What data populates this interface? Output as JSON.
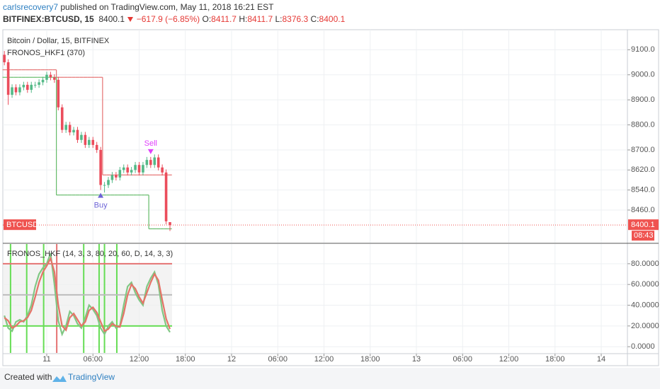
{
  "header": {
    "author": "carlsrecovery7",
    "published": "published on TradingView.com, May 11, 2018 16:21 EST",
    "symbol": "BITFINEX:BTCUSD, 15",
    "last": "8400.1",
    "change": "−617.9 (−6.85%)",
    "ohlc": [
      {
        "label": "O:",
        "value": "8411.7"
      },
      {
        "label": "H:",
        "value": "8411.7"
      },
      {
        "label": "L:",
        "value": "8376.3"
      },
      {
        "label": "C:",
        "value": "8400.1"
      }
    ]
  },
  "chart_data": [
    {
      "type": "candlestick",
      "title": "Bitcoin / Dollar, 15, BITFINEX",
      "indicator_label": "FRONOS_HKF1 (370)",
      "symbol_label": "BTCUSD",
      "countdown": "08:43",
      "up_color": "#53b987",
      "down_color": "#eb4d5c",
      "x": [
        -5.5,
        -5,
        -4.5,
        -4,
        -3.5,
        -3,
        -2.5,
        -2,
        -1.5,
        -1,
        -0.5,
        0,
        0.5,
        1,
        1.5,
        2,
        2.5,
        3,
        3.5,
        4,
        4.5,
        5,
        5.5,
        6,
        6.5,
        7,
        7.5,
        8,
        8.5,
        9,
        9.5,
        10,
        10.5,
        11,
        11.5,
        12,
        12.5,
        13,
        13.5,
        14,
        14.5,
        15,
        15.5,
        16
      ],
      "open": [
        9080,
        9050,
        8920,
        8950,
        8930,
        8950,
        8960,
        8940,
        8960,
        8960,
        8970,
        8980,
        9000,
        8990,
        8980,
        8870,
        8780,
        8800,
        8770,
        8780,
        8740,
        8760,
        8720,
        8740,
        8720,
        8700,
        8560,
        8560,
        8580,
        8600,
        8590,
        8620,
        8630,
        8610,
        8620,
        8640,
        8610,
        8640,
        8660,
        8640,
        8670,
        8630,
        8610,
        8411.7
      ],
      "high": [
        9095,
        9062,
        8962,
        8962,
        8962,
        8972,
        8972,
        8972,
        8972,
        8982,
        8992,
        9012,
        9012,
        9002,
        8992,
        8882,
        8812,
        8812,
        8792,
        8792,
        8772,
        8772,
        8752,
        8752,
        8732,
        8712,
        8572,
        8592,
        8612,
        8612,
        8632,
        8642,
        8642,
        8632,
        8652,
        8652,
        8652,
        8672,
        8672,
        8682,
        8682,
        8642,
        8622,
        8411.7
      ],
      "low": [
        9038,
        8880,
        8908,
        8918,
        8918,
        8938,
        8928,
        8928,
        8948,
        8948,
        8958,
        8968,
        8978,
        8968,
        8858,
        8768,
        8768,
        8758,
        8758,
        8728,
        8728,
        8708,
        8708,
        8708,
        8688,
        8540,
        8530,
        8548,
        8568,
        8578,
        8578,
        8608,
        8598,
        8598,
        8608,
        8598,
        8598,
        8628,
        8628,
        8628,
        8618,
        8598,
        8403,
        8376.3
      ],
      "close": [
        9050,
        8920,
        8950,
        8930,
        8950,
        8960,
        8940,
        8960,
        8960,
        8970,
        8980,
        9000,
        8990,
        8980,
        8870,
        8780,
        8800,
        8770,
        8780,
        8740,
        8760,
        8720,
        8740,
        8720,
        8700,
        8560,
        8560,
        8580,
        8600,
        8590,
        8620,
        8630,
        8610,
        8620,
        8640,
        8610,
        8640,
        8660,
        8640,
        8670,
        8630,
        8610,
        8415,
        8400.1
      ],
      "channel": {
        "upper": {
          "color": "#e57373",
          "values": [
            9020,
            9020,
            9020,
            9020,
            9020,
            9020,
            9020,
            9020,
            9020,
            9020,
            9020,
            9020,
            9020,
            9020,
            8990,
            8990,
            8990,
            8990,
            8990,
            8990,
            8990,
            8990,
            8990,
            8990,
            8990,
            8990,
            8600,
            8600,
            8600,
            8600,
            8600,
            8600,
            8600,
            8600,
            8600,
            8600,
            8600,
            8600,
            8600,
            8600,
            8600,
            8600,
            8600,
            8600
          ]
        },
        "lower": {
          "color": "#66bb6a",
          "values": [
            8990,
            8990,
            8990,
            8990,
            8990,
            8990,
            8990,
            8990,
            8990,
            8990,
            8990,
            8990,
            8990,
            8990,
            8520,
            8520,
            8520,
            8520,
            8520,
            8520,
            8520,
            8520,
            8520,
            8520,
            8520,
            8520,
            8520,
            8520,
            8520,
            8520,
            8520,
            8520,
            8520,
            8520,
            8520,
            8520,
            8520,
            8520,
            8385,
            8385,
            8385,
            8385,
            8385,
            8385
          ]
        }
      },
      "annotations": [
        {
          "text": "Buy",
          "x": 7.0,
          "color": "#6c63d6"
        },
        {
          "text": "Sell",
          "x": 13.5,
          "color": "#e040fb"
        }
      ],
      "price_line_color": "#ef5350",
      "xlim": [
        -5.7,
        75.4
      ],
      "xticks": [
        {
          "value": 0,
          "label": "11"
        },
        {
          "value": 6,
          "label": "06:00"
        },
        {
          "value": 12,
          "label": "12:00"
        },
        {
          "value": 18,
          "label": "18:00"
        },
        {
          "value": 24,
          "label": "12"
        },
        {
          "value": 30,
          "label": "06:00"
        },
        {
          "value": 36,
          "label": "12:00"
        },
        {
          "value": 42,
          "label": "18:00"
        },
        {
          "value": 48,
          "label": "13"
        },
        {
          "value": 54,
          "label": "06:00"
        },
        {
          "value": 60,
          "label": "12:00"
        },
        {
          "value": 66,
          "label": "18:00"
        },
        {
          "value": 72,
          "label": "14"
        }
      ],
      "ylim": [
        8330,
        9180
      ],
      "yticks": [
        {
          "value": 8460,
          "label": "8460.0"
        },
        {
          "value": 8540,
          "label": "8540.0"
        },
        {
          "value": 8620,
          "label": "8620.0"
        },
        {
          "value": 8700,
          "label": "8700.0"
        },
        {
          "value": 8800,
          "label": "8800.0"
        },
        {
          "value": 8900,
          "label": "8900.0"
        },
        {
          "value": 9000,
          "label": "9000.0"
        },
        {
          "value": 9100,
          "label": "9100.0"
        }
      ],
      "grid": true
    },
    {
      "type": "line",
      "title": "FRONOS_HKF (14, 3, 3, 80, 20, 60, D, 14, 3, 3)",
      "x": [
        -5.5,
        -5,
        -4.5,
        -4,
        -3.5,
        -3,
        -2.5,
        -2,
        -1.5,
        -1,
        -0.5,
        0,
        0.5,
        1,
        1.5,
        2,
        2.5,
        3,
        3.5,
        4,
        4.5,
        5,
        5.5,
        6,
        6.5,
        7,
        7.5,
        8,
        8.5,
        9,
        9.5,
        10,
        10.5,
        11,
        11.5,
        12,
        12.5,
        13,
        13.5,
        14,
        14.5,
        15,
        15.5,
        16
      ],
      "series": [
        {
          "color": "#81c784",
          "values": [
            30,
            18,
            15,
            24,
            26,
            24,
            30,
            40,
            58,
            70,
            76,
            80,
            90,
            60,
            25,
            12,
            20,
            34,
            30,
            22,
            18,
            28,
            40,
            36,
            30,
            18,
            12,
            20,
            24,
            18,
            20,
            40,
            58,
            62,
            52,
            45,
            40,
            58,
            66,
            72,
            60,
            35,
            20,
            14
          ]
        },
        {
          "color": "#e57368",
          "values": [
            28,
            25,
            18,
            20,
            24,
            25,
            28,
            35,
            48,
            62,
            72,
            78,
            85,
            72,
            40,
            20,
            16,
            28,
            32,
            26,
            20,
            24,
            35,
            38,
            33,
            24,
            15,
            17,
            22,
            20,
            19,
            32,
            50,
            60,
            56,
            48,
            42,
            52,
            62,
            70,
            64,
            45,
            27,
            17
          ]
        }
      ],
      "levels": [
        {
          "value": 80,
          "color": "#e57373"
        },
        {
          "value": 50,
          "color": "#bdbdbd"
        },
        {
          "value": 20,
          "color": "#66dd55"
        }
      ],
      "signal_lines": [
        {
          "x": -4.7,
          "color": "#66dd55"
        },
        {
          "x": -2.6,
          "color": "#66dd55"
        },
        {
          "x": -0.4,
          "color": "#66dd55"
        },
        {
          "x": 1.3,
          "color": "#e57373"
        },
        {
          "x": 4.8,
          "color": "#66dd55"
        },
        {
          "x": 6.8,
          "color": "#66dd55"
        },
        {
          "x": 7.5,
          "color": "#66dd55"
        },
        {
          "x": 9.1,
          "color": "#66dd55"
        }
      ],
      "xlim": [
        -5.7,
        75.4
      ],
      "ylim": [
        -6,
        99
      ],
      "yticks": [
        {
          "value": 0,
          "label": "0.0000"
        },
        {
          "value": 20,
          "label": "20.0000"
        },
        {
          "value": 40,
          "label": "40.0000"
        },
        {
          "value": 60,
          "label": "60.0000"
        },
        {
          "value": 80,
          "label": "80.0000"
        }
      ],
      "grid": true
    }
  ],
  "footer": {
    "created": "Created with",
    "brand": "TradingView"
  }
}
